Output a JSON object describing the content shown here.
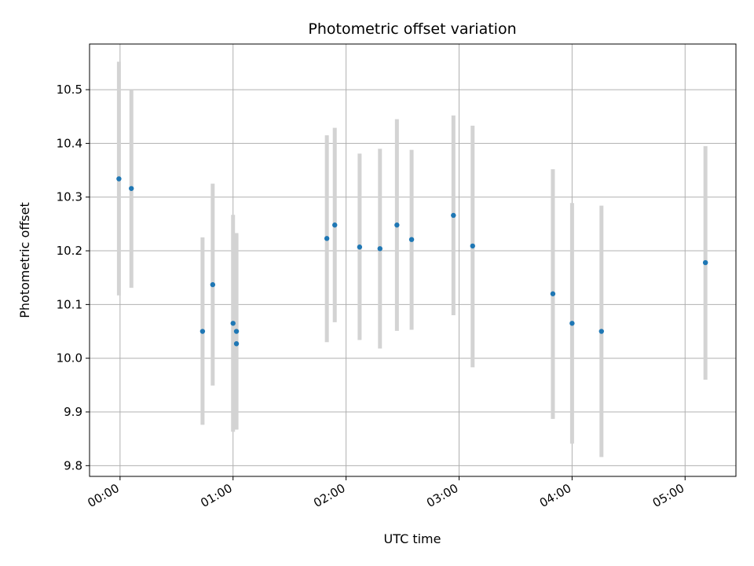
{
  "chart_data": {
    "type": "scatter",
    "title": "Photometric offset variation",
    "xlabel": "UTC time",
    "ylabel": "Photometric offset",
    "x_unit": "hours",
    "xlim": [
      -0.27,
      5.45
    ],
    "ylim": [
      9.78,
      10.585
    ],
    "x_ticks": [
      {
        "value": 0,
        "label": "00:00"
      },
      {
        "value": 1,
        "label": "01:00"
      },
      {
        "value": 2,
        "label": "02:00"
      },
      {
        "value": 3,
        "label": "03:00"
      },
      {
        "value": 4,
        "label": "04:00"
      },
      {
        "value": 5,
        "label": "05:00"
      }
    ],
    "y_ticks": [
      {
        "value": 9.8,
        "label": "9.8"
      },
      {
        "value": 9.9,
        "label": "9.9"
      },
      {
        "value": 10.0,
        "label": "10.0"
      },
      {
        "value": 10.1,
        "label": "10.1"
      },
      {
        "value": 10.2,
        "label": "10.2"
      },
      {
        "value": 10.3,
        "label": "10.3"
      },
      {
        "value": 10.4,
        "label": "10.4"
      },
      {
        "value": 10.5,
        "label": "10.5"
      }
    ],
    "grid": true,
    "point_color": "#1f77b4",
    "errorbar_color": "#d3d3d3",
    "points": [
      {
        "x": -0.01,
        "y": 10.334,
        "err_low": 10.117,
        "err_high": 10.552
      },
      {
        "x": 0.1,
        "y": 10.316,
        "err_low": 10.131,
        "err_high": 10.5
      },
      {
        "x": 0.73,
        "y": 10.05,
        "err_low": 9.876,
        "err_high": 10.225
      },
      {
        "x": 0.82,
        "y": 10.137,
        "err_low": 9.949,
        "err_high": 10.325
      },
      {
        "x": 1.0,
        "y": 10.065,
        "err_low": 9.863,
        "err_high": 10.267
      },
      {
        "x": 1.03,
        "y": 10.05,
        "err_low": 9.867,
        "err_high": 10.233
      },
      {
        "x": 1.03,
        "y": 10.027,
        "err_low": 9.868,
        "err_high": 10.23
      },
      {
        "x": 1.83,
        "y": 10.223,
        "err_low": 10.03,
        "err_high": 10.415
      },
      {
        "x": 1.9,
        "y": 10.248,
        "err_low": 10.067,
        "err_high": 10.429
      },
      {
        "x": 2.12,
        "y": 10.207,
        "err_low": 10.034,
        "err_high": 10.381
      },
      {
        "x": 2.3,
        "y": 10.204,
        "err_low": 10.018,
        "err_high": 10.39
      },
      {
        "x": 2.45,
        "y": 10.248,
        "err_low": 10.051,
        "err_high": 10.445
      },
      {
        "x": 2.58,
        "y": 10.221,
        "err_low": 10.053,
        "err_high": 10.388
      },
      {
        "x": 2.95,
        "y": 10.266,
        "err_low": 10.08,
        "err_high": 10.452
      },
      {
        "x": 3.12,
        "y": 10.209,
        "err_low": 9.983,
        "err_high": 10.433
      },
      {
        "x": 3.83,
        "y": 10.12,
        "err_low": 9.887,
        "err_high": 10.352
      },
      {
        "x": 4.0,
        "y": 10.065,
        "err_low": 9.841,
        "err_high": 10.289
      },
      {
        "x": 4.26,
        "y": 10.05,
        "err_low": 9.816,
        "err_high": 10.284
      },
      {
        "x": 5.18,
        "y": 10.178,
        "err_low": 9.96,
        "err_high": 10.395
      }
    ]
  }
}
